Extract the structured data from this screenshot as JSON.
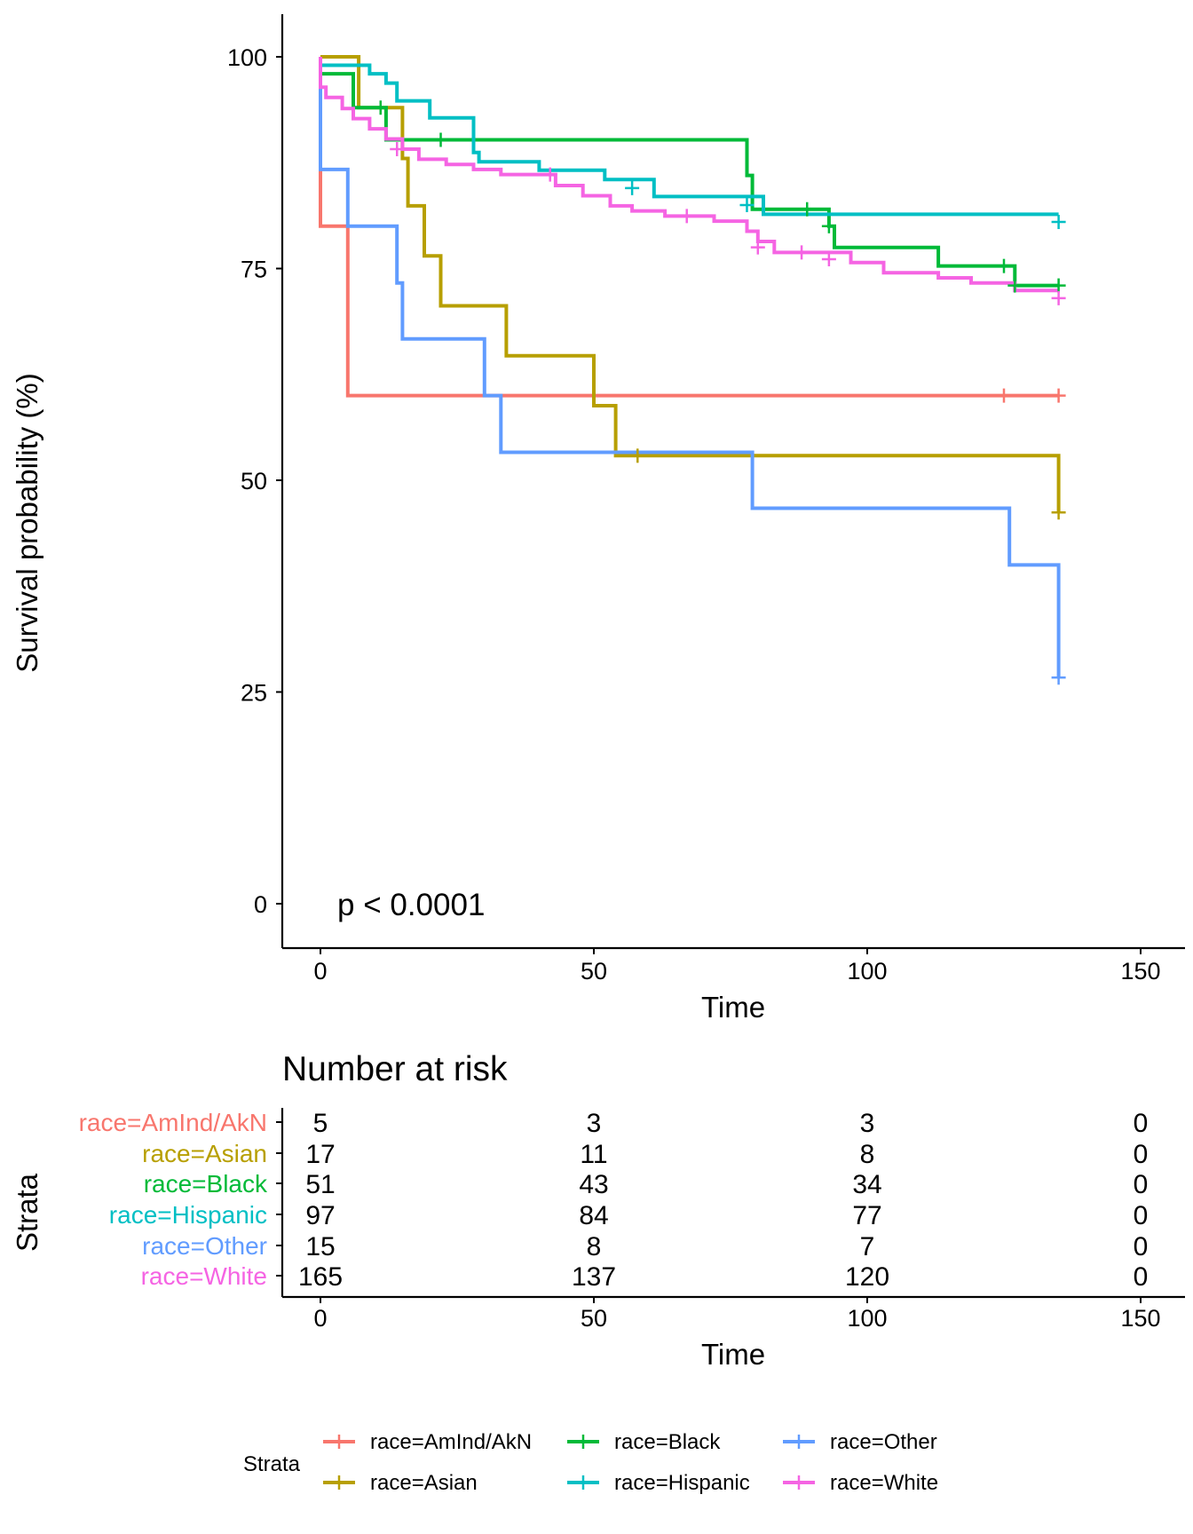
{
  "chart_data": [
    {
      "type": "line",
      "subtype": "kaplan-meier",
      "title": "",
      "xlabel": "Time",
      "ylabel": "Survival probability (%)",
      "xlim": [
        -7.5,
        157.5
      ],
      "ylim": [
        -5,
        105
      ],
      "x_ticks": [
        0,
        50,
        100,
        150
      ],
      "y_ticks": [
        0,
        25,
        50,
        75,
        100
      ],
      "grid": false,
      "legend_position": "bottom",
      "annotation": "p < 0.0001",
      "series": [
        {
          "name": "race=AmInd/AkN",
          "color": "#F8766D",
          "x": [
            0,
            0,
            5,
            5,
            135
          ],
          "y": [
            100,
            80,
            80,
            60,
            60
          ],
          "censor_x": [
            125,
            135
          ],
          "censor_y": [
            60,
            60
          ]
        },
        {
          "name": "race=Asian",
          "color": "#B79F00",
          "x": [
            0,
            7,
            7,
            15,
            15,
            16,
            16,
            19,
            19,
            22,
            22,
            34,
            34,
            50,
            50,
            54,
            54,
            135,
            135
          ],
          "y": [
            100,
            100,
            94,
            94,
            88,
            88,
            82.4,
            82.4,
            76.5,
            76.5,
            70.6,
            70.6,
            64.7,
            64.7,
            58.8,
            58.8,
            52.9,
            52.9,
            46.2
          ],
          "censor_x": [
            58,
            135
          ],
          "censor_y": [
            52.9,
            46.2
          ]
        },
        {
          "name": "race=Black",
          "color": "#00BA38",
          "x": [
            0,
            0,
            6,
            6,
            12,
            12,
            78,
            78,
            79,
            79,
            93,
            93,
            94,
            94,
            113,
            113,
            127,
            127,
            135
          ],
          "y": [
            100,
            98,
            98,
            94,
            94,
            90.2,
            90.2,
            86,
            86,
            82,
            82,
            80,
            80,
            77.5,
            77.5,
            75.3,
            75.3,
            73,
            73
          ],
          "censor_x": [
            11,
            22,
            89,
            93,
            125,
            127,
            135
          ],
          "censor_y": [
            94,
            90.2,
            82,
            80,
            75.3,
            73,
            73
          ]
        },
        {
          "name": "race=Hispanic",
          "color": "#00BFC4",
          "x": [
            0,
            0,
            9,
            9,
            12,
            12,
            14,
            14,
            20,
            20,
            28,
            28,
            29,
            29,
            40,
            40,
            52,
            52,
            61,
            61,
            81,
            81,
            135
          ],
          "y": [
            100,
            99,
            99,
            98,
            98,
            96.9,
            96.9,
            94.8,
            94.8,
            92.8,
            92.8,
            88.7,
            88.7,
            87.6,
            87.6,
            86.6,
            86.6,
            85.5,
            85.5,
            83.5,
            83.5,
            81.4,
            81.4
          ],
          "censor_x": [
            57,
            78,
            135
          ],
          "censor_y": [
            84.5,
            82.5,
            80.5
          ]
        },
        {
          "name": "race=White",
          "color": "#F564E3",
          "x": [
            0,
            0,
            1,
            1,
            4,
            4,
            6,
            6,
            9,
            9,
            12,
            12,
            15,
            15,
            18,
            18,
            23,
            23,
            28,
            28,
            33,
            33,
            43,
            43,
            48,
            48,
            53,
            53,
            57,
            57,
            63,
            63,
            72,
            72,
            78,
            78,
            80,
            80,
            83,
            83,
            97,
            97,
            103,
            103,
            113,
            113,
            119,
            119,
            127,
            127,
            135
          ],
          "y": [
            100,
            96.4,
            96.4,
            95.2,
            95.2,
            93.9,
            93.9,
            92.7,
            92.7,
            91.5,
            91.5,
            90.3,
            90.3,
            89.1,
            89.1,
            87.9,
            87.9,
            87.3,
            87.3,
            86.7,
            86.7,
            86.1,
            86.1,
            84.8,
            84.8,
            83.6,
            83.6,
            82.4,
            82.4,
            81.8,
            81.8,
            81.2,
            81.2,
            80.6,
            80.6,
            79.4,
            79.4,
            78.2,
            78.2,
            76.9,
            76.9,
            75.7,
            75.7,
            74.5,
            74.5,
            73.9,
            73.9,
            73.3,
            73.3,
            72.4,
            72.4
          ],
          "censor_x": [
            14,
            42,
            67,
            80,
            88,
            93,
            135
          ],
          "censor_y": [
            89.1,
            86.1,
            81.2,
            77.5,
            76.9,
            76.1,
            71.5
          ]
        }
      ]
    },
    {
      "type": "table",
      "title": "Number at risk",
      "xlabel": "Time",
      "ylabel": "Strata",
      "x_ticks": [
        0,
        50,
        100,
        150
      ],
      "rows": [
        {
          "name": "race=AmInd/AkN",
          "color": "#F8766D",
          "values": [
            "5",
            "3",
            "3",
            "0"
          ]
        },
        {
          "name": "race=Asian",
          "color": "#B79F00",
          "values": [
            "17",
            "11",
            "8",
            "0"
          ]
        },
        {
          "name": "race=Black",
          "color": "#00BA38",
          "values": [
            "51",
            "43",
            "34",
            "0"
          ]
        },
        {
          "name": "race=Hispanic",
          "color": "#00BFC4",
          "values": [
            "97",
            "84",
            "77",
            "0"
          ]
        },
        {
          "name": "race=Other",
          "color": "#619CFF",
          "values": [
            "15",
            "8",
            "7",
            "0"
          ]
        },
        {
          "name": "race=White",
          "color": "#F564E3",
          "values": [
            "165",
            "137",
            "120",
            "0"
          ]
        }
      ]
    }
  ],
  "other_series": {
    "name": "race=Other",
    "color": "#619CFF",
    "x": [
      0,
      0,
      5,
      5,
      14,
      14,
      15,
      15,
      30,
      30,
      33,
      33,
      79,
      79,
      126,
      126,
      135,
      135
    ],
    "y": [
      100,
      86.7,
      86.7,
      80,
      80,
      73.3,
      73.3,
      66.7,
      66.7,
      60,
      60,
      53.3,
      53.3,
      46.7,
      46.7,
      40,
      40,
      26.7
    ],
    "censor_x": [
      135
    ],
    "censor_y": [
      26.7
    ]
  },
  "legend": {
    "title": "Strata",
    "items": [
      "race=AmInd/AkN",
      "race=Asian",
      "race=Black",
      "race=Hispanic",
      "race=Other",
      "race=White"
    ]
  }
}
